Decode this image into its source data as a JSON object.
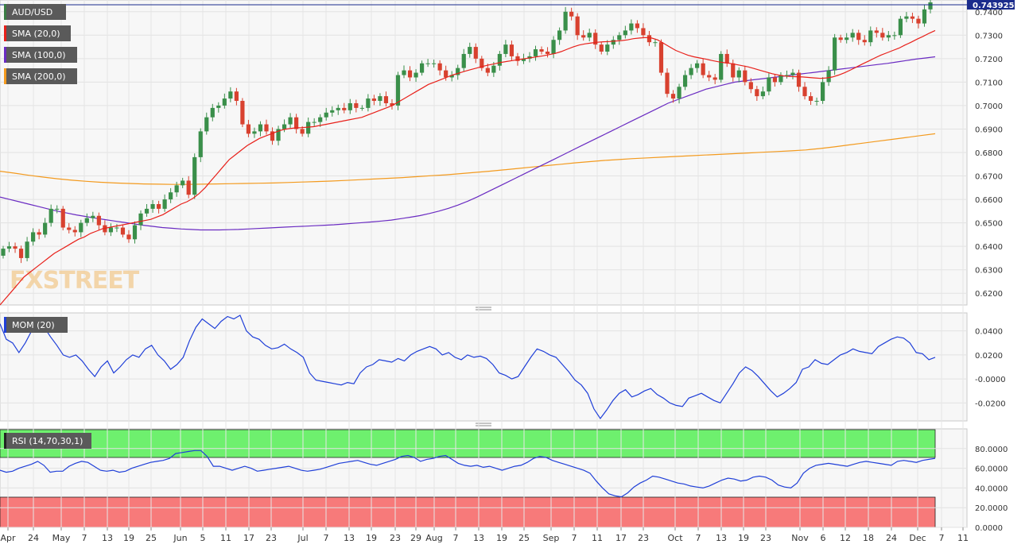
{
  "main": {
    "watermark": "FXSTREET",
    "current_price_label": "0.743925",
    "legend": [
      {
        "label": "AUD/USD",
        "color": "#3a7d44"
      },
      {
        "label": "SMA (20,0)",
        "color": "#e8201a"
      },
      {
        "label": "SMA (100,0)",
        "color": "#6a2bc2"
      },
      {
        "label": "SMA (200,0)",
        "color": "#f39a1e"
      }
    ]
  },
  "momentum": {
    "legend": "MOM (20)",
    "color": "#1f3fd8"
  },
  "rsi": {
    "legend": "RSI (14,70,30,1)",
    "color": "#1f3fd8",
    "overbought": 70,
    "oversold": 30
  },
  "x_axis_labels": [
    "Apr",
    "24",
    "May",
    "7",
    "13",
    "19",
    "25",
    "Jun",
    "5",
    "11",
    "17",
    "23",
    "Jul",
    "7",
    "13",
    "19",
    "23",
    "29",
    "Aug",
    "7",
    "13",
    "19",
    "25",
    "Sep",
    "7",
    "11",
    "17",
    "23",
    "Oct",
    "7",
    "13",
    "19",
    "23",
    "Nov",
    "6",
    "12",
    "18",
    "24",
    "Dec",
    "7",
    "11"
  ],
  "chart_data": [
    {
      "type": "candlestick",
      "title": "AUD/USD",
      "ylim": [
        0.615,
        0.745
      ],
      "yticks": [
        "0.6200",
        "0.6300",
        "0.6400",
        "0.6500",
        "0.6600",
        "0.6700",
        "0.6800",
        "0.6900",
        "0.7000",
        "0.7100",
        "0.7200",
        "0.7300",
        "0.7400"
      ],
      "last_price": 0.743925,
      "closes": [
        0.639,
        0.64,
        0.639,
        0.635,
        0.642,
        0.646,
        0.645,
        0.65,
        0.656,
        0.656,
        0.648,
        0.647,
        0.646,
        0.65,
        0.652,
        0.653,
        0.649,
        0.646,
        0.648,
        0.648,
        0.645,
        0.643,
        0.649,
        0.654,
        0.656,
        0.658,
        0.656,
        0.66,
        0.663,
        0.666,
        0.668,
        0.662,
        0.678,
        0.689,
        0.695,
        0.699,
        0.7,
        0.703,
        0.706,
        0.702,
        0.692,
        0.688,
        0.689,
        0.692,
        0.689,
        0.685,
        0.69,
        0.692,
        0.695,
        0.69,
        0.688,
        0.693,
        0.693,
        0.695,
        0.697,
        0.698,
        0.699,
        0.698,
        0.701,
        0.699,
        0.699,
        0.703,
        0.702,
        0.704,
        0.701,
        0.7,
        0.713,
        0.715,
        0.712,
        0.714,
        0.718,
        0.718,
        0.718,
        0.715,
        0.712,
        0.713,
        0.716,
        0.722,
        0.725,
        0.72,
        0.716,
        0.714,
        0.717,
        0.722,
        0.726,
        0.721,
        0.719,
        0.72,
        0.721,
        0.724,
        0.723,
        0.722,
        0.728,
        0.732,
        0.74,
        0.738,
        0.73,
        0.729,
        0.731,
        0.726,
        0.723,
        0.726,
        0.728,
        0.73,
        0.732,
        0.735,
        0.733,
        0.73,
        0.727,
        0.727,
        0.714,
        0.705,
        0.703,
        0.708,
        0.713,
        0.716,
        0.718,
        0.713,
        0.712,
        0.711,
        0.722,
        0.718,
        0.712,
        0.715,
        0.71,
        0.707,
        0.704,
        0.706,
        0.712,
        0.71,
        0.713,
        0.713,
        0.714,
        0.708,
        0.704,
        0.702,
        0.702,
        0.71,
        0.715,
        0.729,
        0.728,
        0.729,
        0.731,
        0.728,
        0.727,
        0.732,
        0.731,
        0.729,
        0.73,
        0.73,
        0.737,
        0.738,
        0.737,
        0.735,
        0.741,
        0.744
      ]
    },
    {
      "type": "line",
      "name": "SMA (20,0)",
      "values": [
        0.615,
        0.618,
        0.621,
        0.624,
        0.627,
        0.629,
        0.631,
        0.633,
        0.635,
        0.637,
        0.6385,
        0.64,
        0.6415,
        0.643,
        0.644,
        0.6455,
        0.6465,
        0.6475,
        0.648,
        0.6485,
        0.649,
        0.6495,
        0.65,
        0.6505,
        0.651,
        0.6515,
        0.6525,
        0.6535,
        0.655,
        0.6565,
        0.658,
        0.659,
        0.6605,
        0.6625,
        0.665,
        0.668,
        0.671,
        0.674,
        0.677,
        0.679,
        0.681,
        0.683,
        0.6845,
        0.686,
        0.687,
        0.688,
        0.689,
        0.6898,
        0.6902,
        0.6905,
        0.6906,
        0.6908,
        0.691,
        0.6915,
        0.692,
        0.6925,
        0.693,
        0.6935,
        0.694,
        0.6945,
        0.695,
        0.696,
        0.697,
        0.698,
        0.699,
        0.7,
        0.7015,
        0.703,
        0.7045,
        0.706,
        0.7075,
        0.709,
        0.71,
        0.711,
        0.712,
        0.713,
        0.7138,
        0.7146,
        0.7153,
        0.716,
        0.7167,
        0.7173,
        0.7178,
        0.7184,
        0.7188,
        0.7192,
        0.7196,
        0.72,
        0.7204,
        0.7208,
        0.7212,
        0.7217,
        0.7222,
        0.723,
        0.724,
        0.725,
        0.7258,
        0.7263,
        0.7267,
        0.727,
        0.7272,
        0.7273,
        0.7275,
        0.7277,
        0.728,
        0.7285,
        0.7288,
        0.729,
        0.7288,
        0.728,
        0.7265,
        0.725,
        0.7235,
        0.7225,
        0.7215,
        0.7208,
        0.7203,
        0.7198,
        0.7192,
        0.7187,
        0.7183,
        0.718,
        0.7175,
        0.717,
        0.7165,
        0.7158,
        0.715,
        0.7143,
        0.7136,
        0.713,
        0.7126,
        0.7124,
        0.7123,
        0.7122,
        0.712,
        0.7118,
        0.7116,
        0.7118,
        0.7122,
        0.713,
        0.714,
        0.7152,
        0.7165,
        0.7178,
        0.719,
        0.7203,
        0.7215,
        0.7225,
        0.7235,
        0.7245,
        0.7258,
        0.727,
        0.7283,
        0.7295,
        0.7308,
        0.732
      ]
    },
    {
      "type": "line",
      "name": "SMA (100,0)",
      "values": [
        0.661,
        0.66,
        0.659,
        0.658,
        0.657,
        0.656,
        0.655,
        0.6542,
        0.6534,
        0.6527,
        0.652,
        0.6514,
        0.6508,
        0.6502,
        0.6496,
        0.649,
        0.6485,
        0.648,
        0.6477,
        0.6474,
        0.6472,
        0.647,
        0.647,
        0.647,
        0.6471,
        0.6472,
        0.6474,
        0.6476,
        0.6478,
        0.648,
        0.6482,
        0.6484,
        0.6486,
        0.6488,
        0.649,
        0.6492,
        0.6495,
        0.6498,
        0.6501,
        0.6504,
        0.6508,
        0.6512,
        0.6518,
        0.6524,
        0.6531,
        0.654,
        0.655,
        0.6562,
        0.6576,
        0.6592,
        0.661,
        0.663,
        0.665,
        0.667,
        0.669,
        0.671,
        0.673,
        0.675,
        0.677,
        0.679,
        0.681,
        0.683,
        0.685,
        0.687,
        0.689,
        0.691,
        0.693,
        0.695,
        0.697,
        0.699,
        0.701,
        0.7025,
        0.704,
        0.7055,
        0.707,
        0.708,
        0.709,
        0.71,
        0.7105,
        0.711,
        0.7115,
        0.712,
        0.7125,
        0.713,
        0.7135,
        0.714,
        0.7145,
        0.715,
        0.7155,
        0.716,
        0.7165,
        0.717,
        0.7175,
        0.718,
        0.7186,
        0.7192,
        0.7198,
        0.7203,
        0.7208
      ]
    },
    {
      "type": "line",
      "name": "SMA (200,0)",
      "values": [
        0.672,
        0.6712,
        0.6703,
        0.6695,
        0.6688,
        0.6682,
        0.6677,
        0.6673,
        0.667,
        0.6668,
        0.6666,
        0.6665,
        0.6664,
        0.6664,
        0.6665,
        0.6666,
        0.6667,
        0.6668,
        0.6669,
        0.667,
        0.6672,
        0.6674,
        0.6676,
        0.6678,
        0.6681,
        0.6684,
        0.6687,
        0.669,
        0.6693,
        0.6697,
        0.6701,
        0.6705,
        0.671,
        0.6715,
        0.672,
        0.6726,
        0.6732,
        0.6738,
        0.6744,
        0.675,
        0.6756,
        0.6761,
        0.6766,
        0.677,
        0.6774,
        0.6777,
        0.678,
        0.6783,
        0.6786,
        0.6789,
        0.6792,
        0.6795,
        0.6798,
        0.6801,
        0.6804,
        0.6807,
        0.6811,
        0.6817,
        0.6824,
        0.6832,
        0.684,
        0.6848,
        0.6856,
        0.6864,
        0.6872,
        0.688
      ]
    },
    {
      "type": "line",
      "name": "MOM (20)",
      "ylim": [
        -0.035,
        0.055
      ],
      "yticks": [
        "0.0400",
        "0.0200",
        "-0.0000",
        "-0.0200"
      ],
      "values": [
        0.046,
        0.033,
        0.03,
        0.022,
        0.03,
        0.04,
        0.045,
        0.043,
        0.035,
        0.028,
        0.02,
        0.018,
        0.02,
        0.015,
        0.008,
        0.002,
        0.01,
        0.015,
        0.005,
        0.01,
        0.016,
        0.02,
        0.018,
        0.025,
        0.028,
        0.02,
        0.015,
        0.008,
        0.012,
        0.018,
        0.032,
        0.043,
        0.05,
        0.046,
        0.042,
        0.048,
        0.052,
        0.05,
        0.053,
        0.04,
        0.035,
        0.033,
        0.028,
        0.025,
        0.026,
        0.029,
        0.025,
        0.022,
        0.018,
        0.005,
        -0.001,
        -0.002,
        -0.003,
        -0.004,
        -0.005,
        -0.003,
        -0.004,
        0.005,
        0.01,
        0.012,
        0.016,
        0.015,
        0.014,
        0.017,
        0.015,
        0.02,
        0.023,
        0.025,
        0.027,
        0.025,
        0.02,
        0.022,
        0.018,
        0.016,
        0.02,
        0.018,
        0.019,
        0.017,
        0.012,
        0.005,
        0.003,
        0.0,
        0.002,
        0.01,
        0.018,
        0.025,
        0.023,
        0.02,
        0.018,
        0.012,
        0.006,
        -0.001,
        -0.005,
        -0.012,
        -0.025,
        -0.033,
        -0.026,
        -0.018,
        -0.012,
        -0.009,
        -0.015,
        -0.013,
        -0.01,
        -0.008,
        -0.013,
        -0.016,
        -0.02,
        -0.022,
        -0.023,
        -0.016,
        -0.014,
        -0.012,
        -0.015,
        -0.018,
        -0.02,
        -0.012,
        -0.004,
        0.005,
        0.01,
        0.007,
        0.002,
        -0.004,
        -0.01,
        -0.015,
        -0.012,
        -0.008,
        -0.003,
        0.008,
        0.01,
        0.016,
        0.013,
        0.012,
        0.016,
        0.02,
        0.022,
        0.025,
        0.023,
        0.022,
        0.021,
        0.027,
        0.03,
        0.033,
        0.035,
        0.034,
        0.03,
        0.022,
        0.021,
        0.016,
        0.018
      ]
    },
    {
      "type": "line",
      "name": "RSI (14,70,30,1)",
      "ylim": [
        0,
        100
      ],
      "yticks": [
        "80.0000",
        "60.0000",
        "40.0000",
        "20.0000",
        "0.0000"
      ],
      "values": [
        58,
        56,
        57,
        60,
        62,
        64,
        67,
        63,
        56,
        57,
        57,
        62,
        65,
        67,
        66,
        62,
        58,
        57,
        58,
        56,
        57,
        60,
        62,
        64,
        66,
        67,
        68,
        70,
        75,
        76,
        77,
        78,
        78,
        72,
        62,
        62,
        60,
        58,
        60,
        62,
        60,
        57,
        58,
        59,
        60,
        61,
        62,
        60,
        58,
        57,
        58,
        59,
        61,
        63,
        65,
        66,
        67,
        68,
        66,
        64,
        63,
        65,
        67,
        69,
        72,
        73,
        71,
        67,
        69,
        70,
        72,
        73,
        69,
        65,
        63,
        62,
        63,
        61,
        62,
        60,
        58,
        60,
        62,
        63,
        66,
        70,
        72,
        71,
        68,
        66,
        64,
        62,
        60,
        58,
        55,
        47,
        40,
        34,
        32,
        31,
        35,
        41,
        45,
        48,
        52,
        51,
        49,
        47,
        45,
        44,
        42,
        41,
        40,
        42,
        45,
        48,
        50,
        49,
        47,
        48,
        51,
        52,
        51,
        48,
        43,
        41,
        40,
        45,
        55,
        60,
        63,
        64,
        65,
        64,
        63,
        62,
        64,
        66,
        67,
        66,
        65,
        64,
        63,
        67,
        68,
        67,
        66,
        68,
        69,
        70
      ]
    }
  ]
}
